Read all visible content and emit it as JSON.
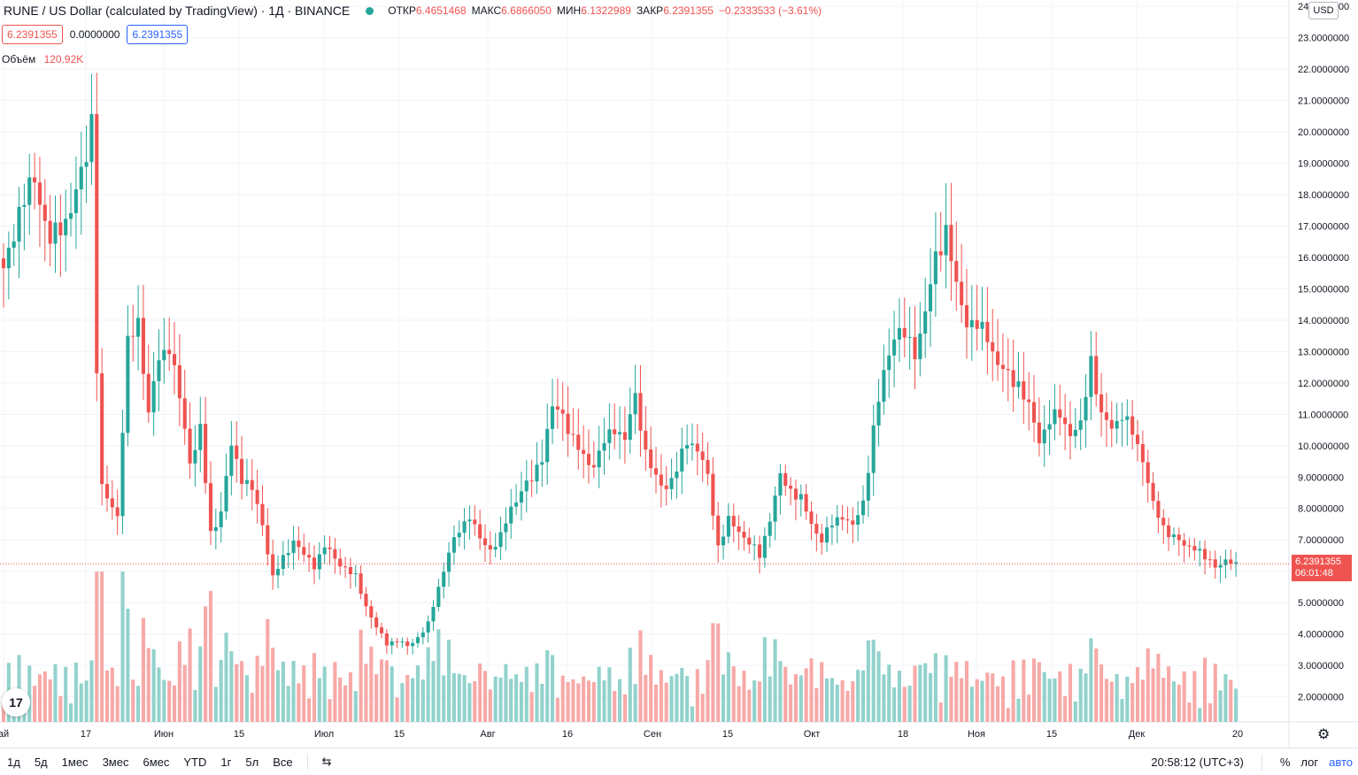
{
  "legend": {
    "title": "RUNE / US Dollar (calculated by TradingView) · 1Д · BINANCE",
    "open_label": "ОТКР",
    "open": "6.4651468",
    "high_label": "МАКС",
    "high": "6.6866050",
    "low_label": "МИН",
    "low": "6.1322989",
    "close_label": "ЗАКР",
    "close": "6.2391355",
    "change": "−0.2333533 (−3.61%)"
  },
  "price_boxes": {
    "bid": "6.2391355",
    "spread": "0.0000000",
    "ask": "6.2391355"
  },
  "volume_legend": {
    "label": "Объём",
    "value": "120.92K"
  },
  "currency_button": "USD",
  "last_price": {
    "value": "6.2391355",
    "countdown": "06:01:48"
  },
  "colors": {
    "up": "#26a69a",
    "down": "#ef5350",
    "up_vol": "#92d2cc",
    "down_vol": "#f7a9a7"
  },
  "bottom_bar": {
    "timeframes": [
      "1д",
      "5д",
      "1мес",
      "3мес",
      "6мес",
      "YTD",
      "1г",
      "5л",
      "Все"
    ],
    "clock": "20:58:12 (UTC+3)",
    "percent": "%",
    "log": "лог",
    "auto": "авто"
  },
  "chart_data": {
    "type": "candlestick",
    "title": "RUNE / US Dollar (calculated by TradingView) · 1Д · BINANCE",
    "y_axis_labels": [
      "2.0000000",
      "3.0000000",
      "4.0000000",
      "5.0000000",
      "6.0000000",
      "7.0000000",
      "8.0000000",
      "9.0000000",
      "10.0000000",
      "11.0000000",
      "12.0000000",
      "13.0000000",
      "14.0000000",
      "15.0000000",
      "16.0000000",
      "17.0000000",
      "18.0000000",
      "19.0000000",
      "20.0000000",
      "21.0000000",
      "22.0000000",
      "23.0000000",
      "24.0000000"
    ],
    "x_axis_labels": [
      "ай",
      "17",
      "Июн",
      "15",
      "Июл",
      "15",
      "Авг",
      "16",
      "Сен",
      "15",
      "Окт",
      "18",
      "Ноя",
      "15",
      "Дек",
      "20"
    ],
    "ylim": [
      1.2,
      24.2
    ],
    "keypoints": [
      [
        0,
        15.5
      ],
      [
        3,
        17.5
      ],
      [
        6,
        18.5
      ],
      [
        9,
        16.5
      ],
      [
        12,
        17.2
      ],
      [
        14,
        18.0
      ],
      [
        16,
        19.3
      ],
      [
        17,
        20.5
      ],
      [
        18,
        12.5
      ],
      [
        19,
        8.6
      ],
      [
        22,
        7.8
      ],
      [
        24,
        13.2
      ],
      [
        26,
        14.0
      ],
      [
        28,
        11.0
      ],
      [
        30,
        12.8
      ],
      [
        32,
        13.2
      ],
      [
        34,
        11.5
      ],
      [
        36,
        9.5
      ],
      [
        38,
        10.5
      ],
      [
        40,
        7.2
      ],
      [
        42,
        7.9
      ],
      [
        44,
        10.0
      ],
      [
        46,
        9.0
      ],
      [
        48,
        8.6
      ],
      [
        50,
        7.5
      ],
      [
        52,
        5.8
      ],
      [
        54,
        6.4
      ],
      [
        56,
        7.0
      ],
      [
        58,
        6.5
      ],
      [
        60,
        6.2
      ],
      [
        62,
        6.8
      ],
      [
        64,
        6.4
      ],
      [
        66,
        6.1
      ],
      [
        68,
        5.8
      ],
      [
        70,
        4.9
      ],
      [
        72,
        4.2
      ],
      [
        74,
        3.7
      ],
      [
        76,
        3.8
      ],
      [
        78,
        3.6
      ],
      [
        80,
        3.9
      ],
      [
        82,
        4.3
      ],
      [
        84,
        5.5
      ],
      [
        86,
        6.6
      ],
      [
        88,
        7.3
      ],
      [
        90,
        7.8
      ],
      [
        92,
        7.0
      ],
      [
        94,
        6.7
      ],
      [
        96,
        7.1
      ],
      [
        98,
        8.0
      ],
      [
        100,
        8.6
      ],
      [
        102,
        8.9
      ],
      [
        104,
        9.7
      ],
      [
        106,
        11.2
      ],
      [
        108,
        11.0
      ],
      [
        110,
        10.2
      ],
      [
        112,
        9.6
      ],
      [
        114,
        9.4
      ],
      [
        116,
        10.1
      ],
      [
        118,
        10.6
      ],
      [
        120,
        10.2
      ],
      [
        122,
        11.6
      ],
      [
        124,
        9.8
      ],
      [
        126,
        8.9
      ],
      [
        128,
        8.7
      ],
      [
        130,
        9.2
      ],
      [
        132,
        10.2
      ],
      [
        134,
        9.9
      ],
      [
        136,
        9.0
      ],
      [
        138,
        6.8
      ],
      [
        140,
        7.6
      ],
      [
        142,
        7.3
      ],
      [
        144,
        6.9
      ],
      [
        146,
        6.5
      ],
      [
        148,
        7.7
      ],
      [
        150,
        9.0
      ],
      [
        152,
        8.6
      ],
      [
        154,
        8.3
      ],
      [
        156,
        7.5
      ],
      [
        158,
        7.0
      ],
      [
        160,
        7.5
      ],
      [
        162,
        7.8
      ],
      [
        164,
        7.4
      ],
      [
        166,
        8.2
      ],
      [
        168,
        10.5
      ],
      [
        170,
        12.3
      ],
      [
        172,
        13.6
      ],
      [
        174,
        13.5
      ],
      [
        176,
        13.0
      ],
      [
        178,
        14.2
      ],
      [
        180,
        16.0
      ],
      [
        182,
        16.9
      ],
      [
        184,
        15.0
      ],
      [
        186,
        14.0
      ],
      [
        188,
        13.8
      ],
      [
        190,
        13.5
      ],
      [
        192,
        12.6
      ],
      [
        194,
        12.2
      ],
      [
        196,
        12.0
      ],
      [
        198,
        11.2
      ],
      [
        200,
        10.2
      ],
      [
        202,
        10.8
      ],
      [
        204,
        11.0
      ],
      [
        206,
        10.4
      ],
      [
        208,
        10.6
      ],
      [
        210,
        12.8
      ],
      [
        212,
        10.9
      ],
      [
        214,
        10.6
      ],
      [
        216,
        11.0
      ],
      [
        218,
        10.4
      ],
      [
        220,
        9.6
      ],
      [
        222,
        8.1
      ],
      [
        224,
        7.4
      ],
      [
        226,
        7.1
      ],
      [
        228,
        6.8
      ],
      [
        230,
        6.8
      ],
      [
        232,
        6.4
      ],
      [
        234,
        6.2
      ],
      [
        236,
        6.3
      ],
      [
        238,
        6.2
      ]
    ],
    "n_bars": 239
  }
}
